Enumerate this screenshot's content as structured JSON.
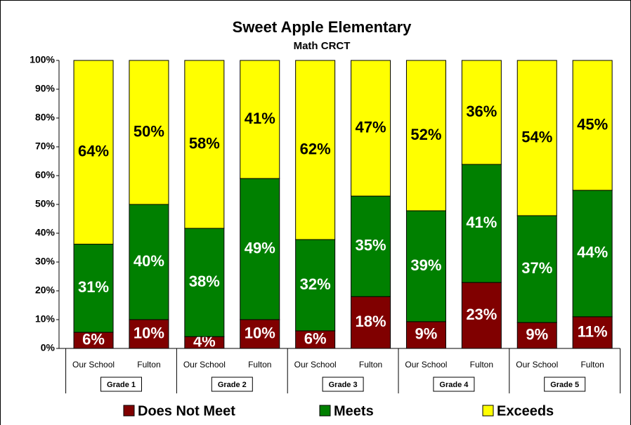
{
  "chart_data": {
    "type": "stacked_bar",
    "title": "Sweet Apple Elementary",
    "subtitle": "Math CRCT",
    "categories": [
      "Our School",
      "Fulton",
      "Our School",
      "Fulton",
      "Our School",
      "Fulton",
      "Our School",
      "Fulton",
      "Our School",
      "Fulton"
    ],
    "groups": [
      "Grade 1",
      "Grade 2",
      "Grade 3",
      "Grade 4",
      "Grade 5"
    ],
    "series": [
      {
        "name": "Does Not Meet",
        "color": "#800000",
        "values": [
          5.6,
          10,
          4.1,
          10,
          6.1,
          18,
          9.3,
          22.9,
          9,
          11
        ],
        "value_labels": [
          "6%",
          "10%",
          "4%",
          "10%",
          "6%",
          "18%",
          "9%",
          "23%",
          "9%",
          "11%"
        ]
      },
      {
        "name": "Meets",
        "color": "#008000",
        "values": [
          30.6,
          40,
          37.6,
          49,
          31.7,
          34.9,
          38.5,
          41,
          37.1,
          43.9
        ],
        "value_labels": [
          "31%",
          "40%",
          "38%",
          "49%",
          "32%",
          "35%",
          "39%",
          "41%",
          "37%",
          "44%"
        ]
      },
      {
        "name": "Exceeds",
        "color": "#ffff00",
        "values": [
          63.8,
          50,
          58.3,
          41,
          62.2,
          47.1,
          52.2,
          36.1,
          53.9,
          45.1
        ],
        "value_labels": [
          "64%",
          "50%",
          "58%",
          "41%",
          "62%",
          "47%",
          "52%",
          "36%",
          "54%",
          "45%"
        ]
      }
    ],
    "ylim": [
      0,
      100
    ],
    "yticks": [
      {
        "value": 0,
        "label": "0%"
      },
      {
        "value": 10,
        "label": "10%"
      },
      {
        "value": 20,
        "label": "20%"
      },
      {
        "value": 30,
        "label": "30%"
      },
      {
        "value": 40,
        "label": "40%"
      },
      {
        "value": 50,
        "label": "50%"
      },
      {
        "value": 60,
        "label": "60%"
      },
      {
        "value": 70,
        "label": "70%"
      },
      {
        "value": 80,
        "label": "80%"
      },
      {
        "value": 90,
        "label": "90%"
      },
      {
        "value": 100,
        "label": "100%"
      }
    ],
    "grid": false,
    "legend": "bottom"
  }
}
